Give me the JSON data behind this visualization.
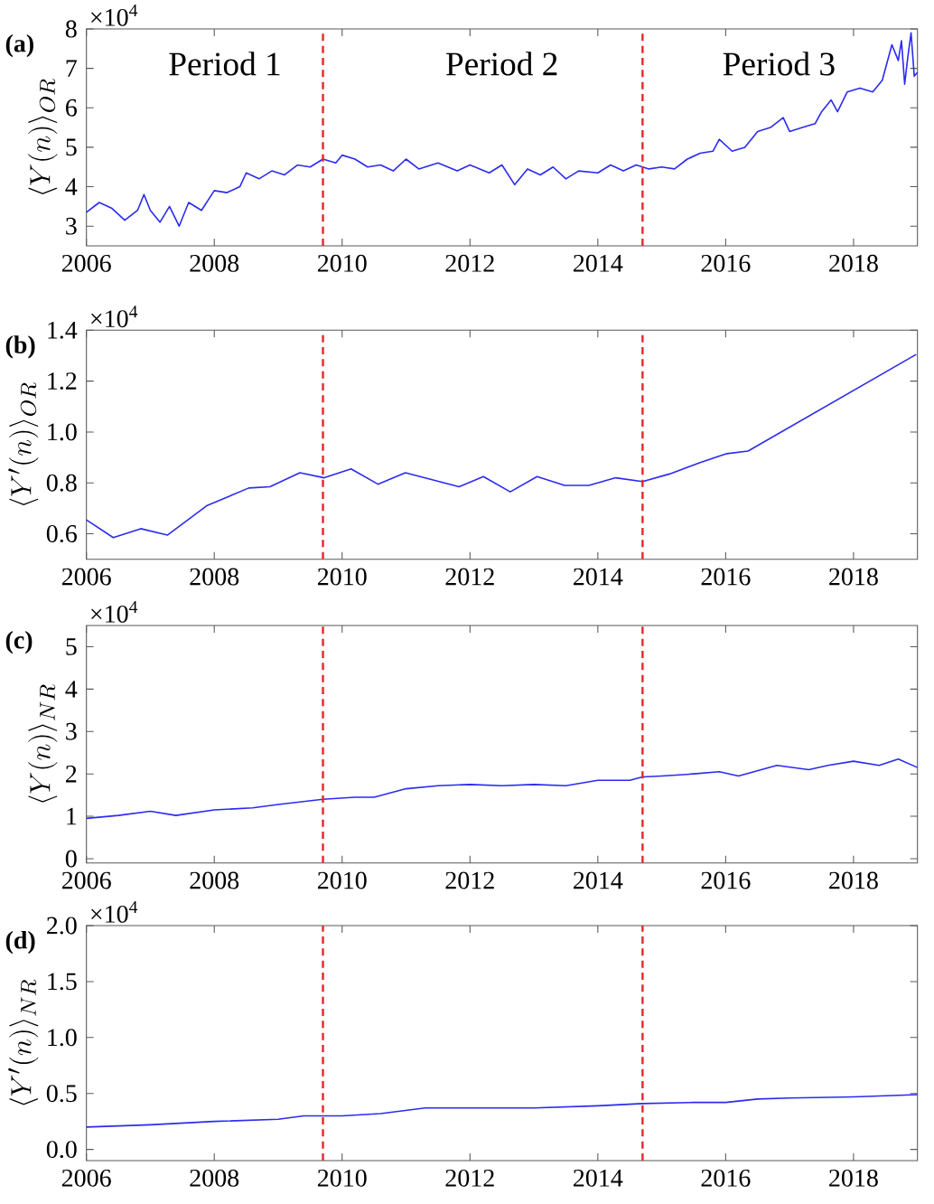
{
  "chart_data": [
    {
      "type": "line",
      "title": "(a)",
      "ylabel": "\\langle Y(n)\\rangle_{OR}",
      "xlim": [
        2006,
        2019
      ],
      "xticks": [
        2006,
        2008,
        2010,
        2012,
        2014,
        2016,
        2018
      ],
      "ylim": [
        2.5,
        8
      ],
      "yticks": [
        3,
        4,
        5,
        6,
        7,
        8
      ],
      "ref_lines": [
        {
          "axis": "x",
          "value": 2009.7,
          "color": "#e8262a",
          "line_style": "dashed"
        },
        {
          "axis": "x",
          "value": 2014.7,
          "color": "#e8262a",
          "line_style": "dashed"
        }
      ],
      "annotations": [
        "×10$^{4}$",
        "Period 1",
        "Period 2",
        "Period 3"
      ],
      "x": [
        2006.0,
        2006.2,
        2006.4,
        2006.6,
        2006.8,
        2006.9,
        2007.0,
        2007.15,
        2007.3,
        2007.45,
        2007.6,
        2007.8,
        2008.0,
        2008.2,
        2008.4,
        2008.5,
        2008.7,
        2008.9,
        2009.1,
        2009.3,
        2009.5,
        2009.7,
        2009.9,
        2010.0,
        2010.2,
        2010.4,
        2010.6,
        2010.8,
        2011.0,
        2011.2,
        2011.5,
        2011.8,
        2012.0,
        2012.3,
        2012.5,
        2012.7,
        2012.9,
        2013.1,
        2013.3,
        2013.5,
        2013.7,
        2014.0,
        2014.2,
        2014.4,
        2014.6,
        2014.8,
        2015.0,
        2015.2,
        2015.4,
        2015.6,
        2015.8,
        2015.9,
        2016.1,
        2016.3,
        2016.5,
        2016.7,
        2016.9,
        2017.0,
        2017.2,
        2017.4,
        2017.5,
        2017.65,
        2017.75,
        2017.9,
        2018.1,
        2018.3,
        2018.45,
        2018.6,
        2018.7,
        2018.75,
        2018.8,
        2018.85,
        2018.9,
        2018.95,
        2019.0
      ],
      "series": [
        {
          "color": "#2b2bf0",
          "values": [
            3.35,
            3.6,
            3.45,
            3.15,
            3.4,
            3.8,
            3.4,
            3.1,
            3.5,
            3.0,
            3.6,
            3.4,
            3.9,
            3.85,
            4.0,
            4.35,
            4.2,
            4.4,
            4.3,
            4.55,
            4.5,
            4.7,
            4.6,
            4.8,
            4.7,
            4.5,
            4.55,
            4.4,
            4.7,
            4.45,
            4.6,
            4.4,
            4.55,
            4.35,
            4.55,
            4.05,
            4.45,
            4.3,
            4.5,
            4.2,
            4.4,
            4.35,
            4.55,
            4.4,
            4.55,
            4.45,
            4.5,
            4.45,
            4.7,
            4.85,
            4.9,
            5.2,
            4.9,
            5.0,
            5.4,
            5.5,
            5.75,
            5.4,
            5.5,
            5.6,
            5.9,
            6.2,
            5.9,
            6.4,
            6.5,
            6.4,
            6.7,
            7.6,
            7.2,
            7.7,
            6.6,
            7.3,
            7.9,
            6.8,
            6.9
          ]
        }
      ]
    },
    {
      "type": "line",
      "title": "(b)",
      "ylabel": "\\langle Y'(n)\\rangle_{OR}",
      "xlim": [
        2006,
        2019
      ],
      "xticks": [
        2006,
        2008,
        2010,
        2012,
        2014,
        2016,
        2018
      ],
      "ylim": [
        0.5,
        1.4
      ],
      "yticks": [
        {
          "value": 0.6,
          "label": "0.6"
        },
        {
          "value": 0.8,
          "label": "0.8"
        },
        {
          "value": 1.0,
          "label": "1.0"
        },
        {
          "value": 1.2,
          "label": "1.2"
        },
        {
          "value": 1.4,
          "label": "1.4"
        }
      ],
      "ref_lines": [
        {
          "axis": "x",
          "value": 2009.7,
          "color": "#e8262a",
          "line_style": "dashed"
        },
        {
          "axis": "x",
          "value": 2014.7,
          "color": "#e8262a",
          "line_style": "dashed"
        }
      ],
      "annotations": [
        "×10$^{4}$"
      ],
      "x": [
        2006.0,
        2006.42,
        2006.85,
        2007.27,
        2007.88,
        2008.54,
        2008.87,
        2009.34,
        2009.72,
        2010.14,
        2010.56,
        2010.99,
        2011.83,
        2012.21,
        2012.63,
        2013.05,
        2013.48,
        2013.86,
        2014.28,
        2014.7,
        2015.12,
        2015.6,
        2016.02,
        2016.35,
        2018.98
      ],
      "series": [
        {
          "color": "#2b2bf0",
          "values": [
            0.655,
            0.585,
            0.62,
            0.595,
            0.71,
            0.78,
            0.785,
            0.84,
            0.82,
            0.855,
            0.795,
            0.84,
            0.785,
            0.825,
            0.765,
            0.825,
            0.79,
            0.79,
            0.82,
            0.805,
            0.835,
            0.88,
            0.915,
            0.925,
            1.305
          ]
        }
      ]
    },
    {
      "type": "line",
      "title": "(c)",
      "ylabel": "\\langle Y(n)\\rangle_{NR}",
      "xlim": [
        2006,
        2019
      ],
      "xticks": [
        2006,
        2008,
        2010,
        2012,
        2014,
        2016,
        2018
      ],
      "ylim": [
        -0.1,
        5.5
      ],
      "yticks": [
        0,
        1,
        2,
        3,
        4,
        5
      ],
      "ref_lines": [
        {
          "axis": "x",
          "value": 2009.7,
          "color": "#e8262a",
          "line_style": "dashed"
        },
        {
          "axis": "x",
          "value": 2014.7,
          "color": "#e8262a",
          "line_style": "dashed"
        }
      ],
      "annotations": [
        "×10$^{4}$"
      ],
      "x": [
        2006.0,
        2006.5,
        2007.0,
        2007.4,
        2008.0,
        2008.6,
        2009.0,
        2009.7,
        2010.2,
        2010.5,
        2011.0,
        2011.5,
        2012.0,
        2012.5,
        2013.0,
        2013.5,
        2014.0,
        2014.5,
        2014.7,
        2015.0,
        2015.5,
        2015.9,
        2016.2,
        2016.8,
        2017.3,
        2017.6,
        2018.0,
        2018.4,
        2018.7,
        2019.0
      ],
      "series": [
        {
          "color": "#2b2bf0",
          "values": [
            0.95,
            1.02,
            1.12,
            1.02,
            1.15,
            1.2,
            1.28,
            1.4,
            1.45,
            1.45,
            1.65,
            1.72,
            1.75,
            1.72,
            1.75,
            1.72,
            1.85,
            1.85,
            1.93,
            1.95,
            2.0,
            2.05,
            1.95,
            2.2,
            2.1,
            2.2,
            2.3,
            2.2,
            2.35,
            2.15
          ]
        }
      ]
    },
    {
      "type": "line",
      "title": "(d)",
      "ylabel": "\\langle Y'(n)\\rangle_{NR}",
      "xlim": [
        2006,
        2019
      ],
      "xticks": [
        2006,
        2008,
        2010,
        2012,
        2014,
        2016,
        2018
      ],
      "ylim": [
        -0.1,
        2.0
      ],
      "yticks": [
        {
          "value": 0,
          "label": "0.0"
        },
        {
          "value": 0.5,
          "label": "0.5"
        },
        {
          "value": 1.0,
          "label": "1.0"
        },
        {
          "value": 1.5,
          "label": "1.5"
        },
        {
          "value": 2.0,
          "label": "2.0"
        }
      ],
      "ref_lines": [
        {
          "axis": "x",
          "value": 2009.7,
          "color": "#e8262a",
          "line_style": "dashed"
        },
        {
          "axis": "x",
          "value": 2014.7,
          "color": "#e8262a",
          "line_style": "dashed"
        }
      ],
      "annotations": [
        "×10$^{4}$"
      ],
      "x": [
        2006.0,
        2007.0,
        2008.0,
        2009.0,
        2009.4,
        2010.0,
        2010.6,
        2011.3,
        2012.0,
        2013.0,
        2014.0,
        2014.7,
        2015.5,
        2016.0,
        2016.5,
        2017.0,
        2018.0,
        2019.0
      ],
      "series": [
        {
          "color": "#2b2bf0",
          "values": [
            0.2,
            0.22,
            0.25,
            0.27,
            0.3,
            0.3,
            0.32,
            0.37,
            0.37,
            0.37,
            0.39,
            0.41,
            0.42,
            0.42,
            0.45,
            0.46,
            0.47,
            0.49
          ]
        }
      ]
    }
  ]
}
